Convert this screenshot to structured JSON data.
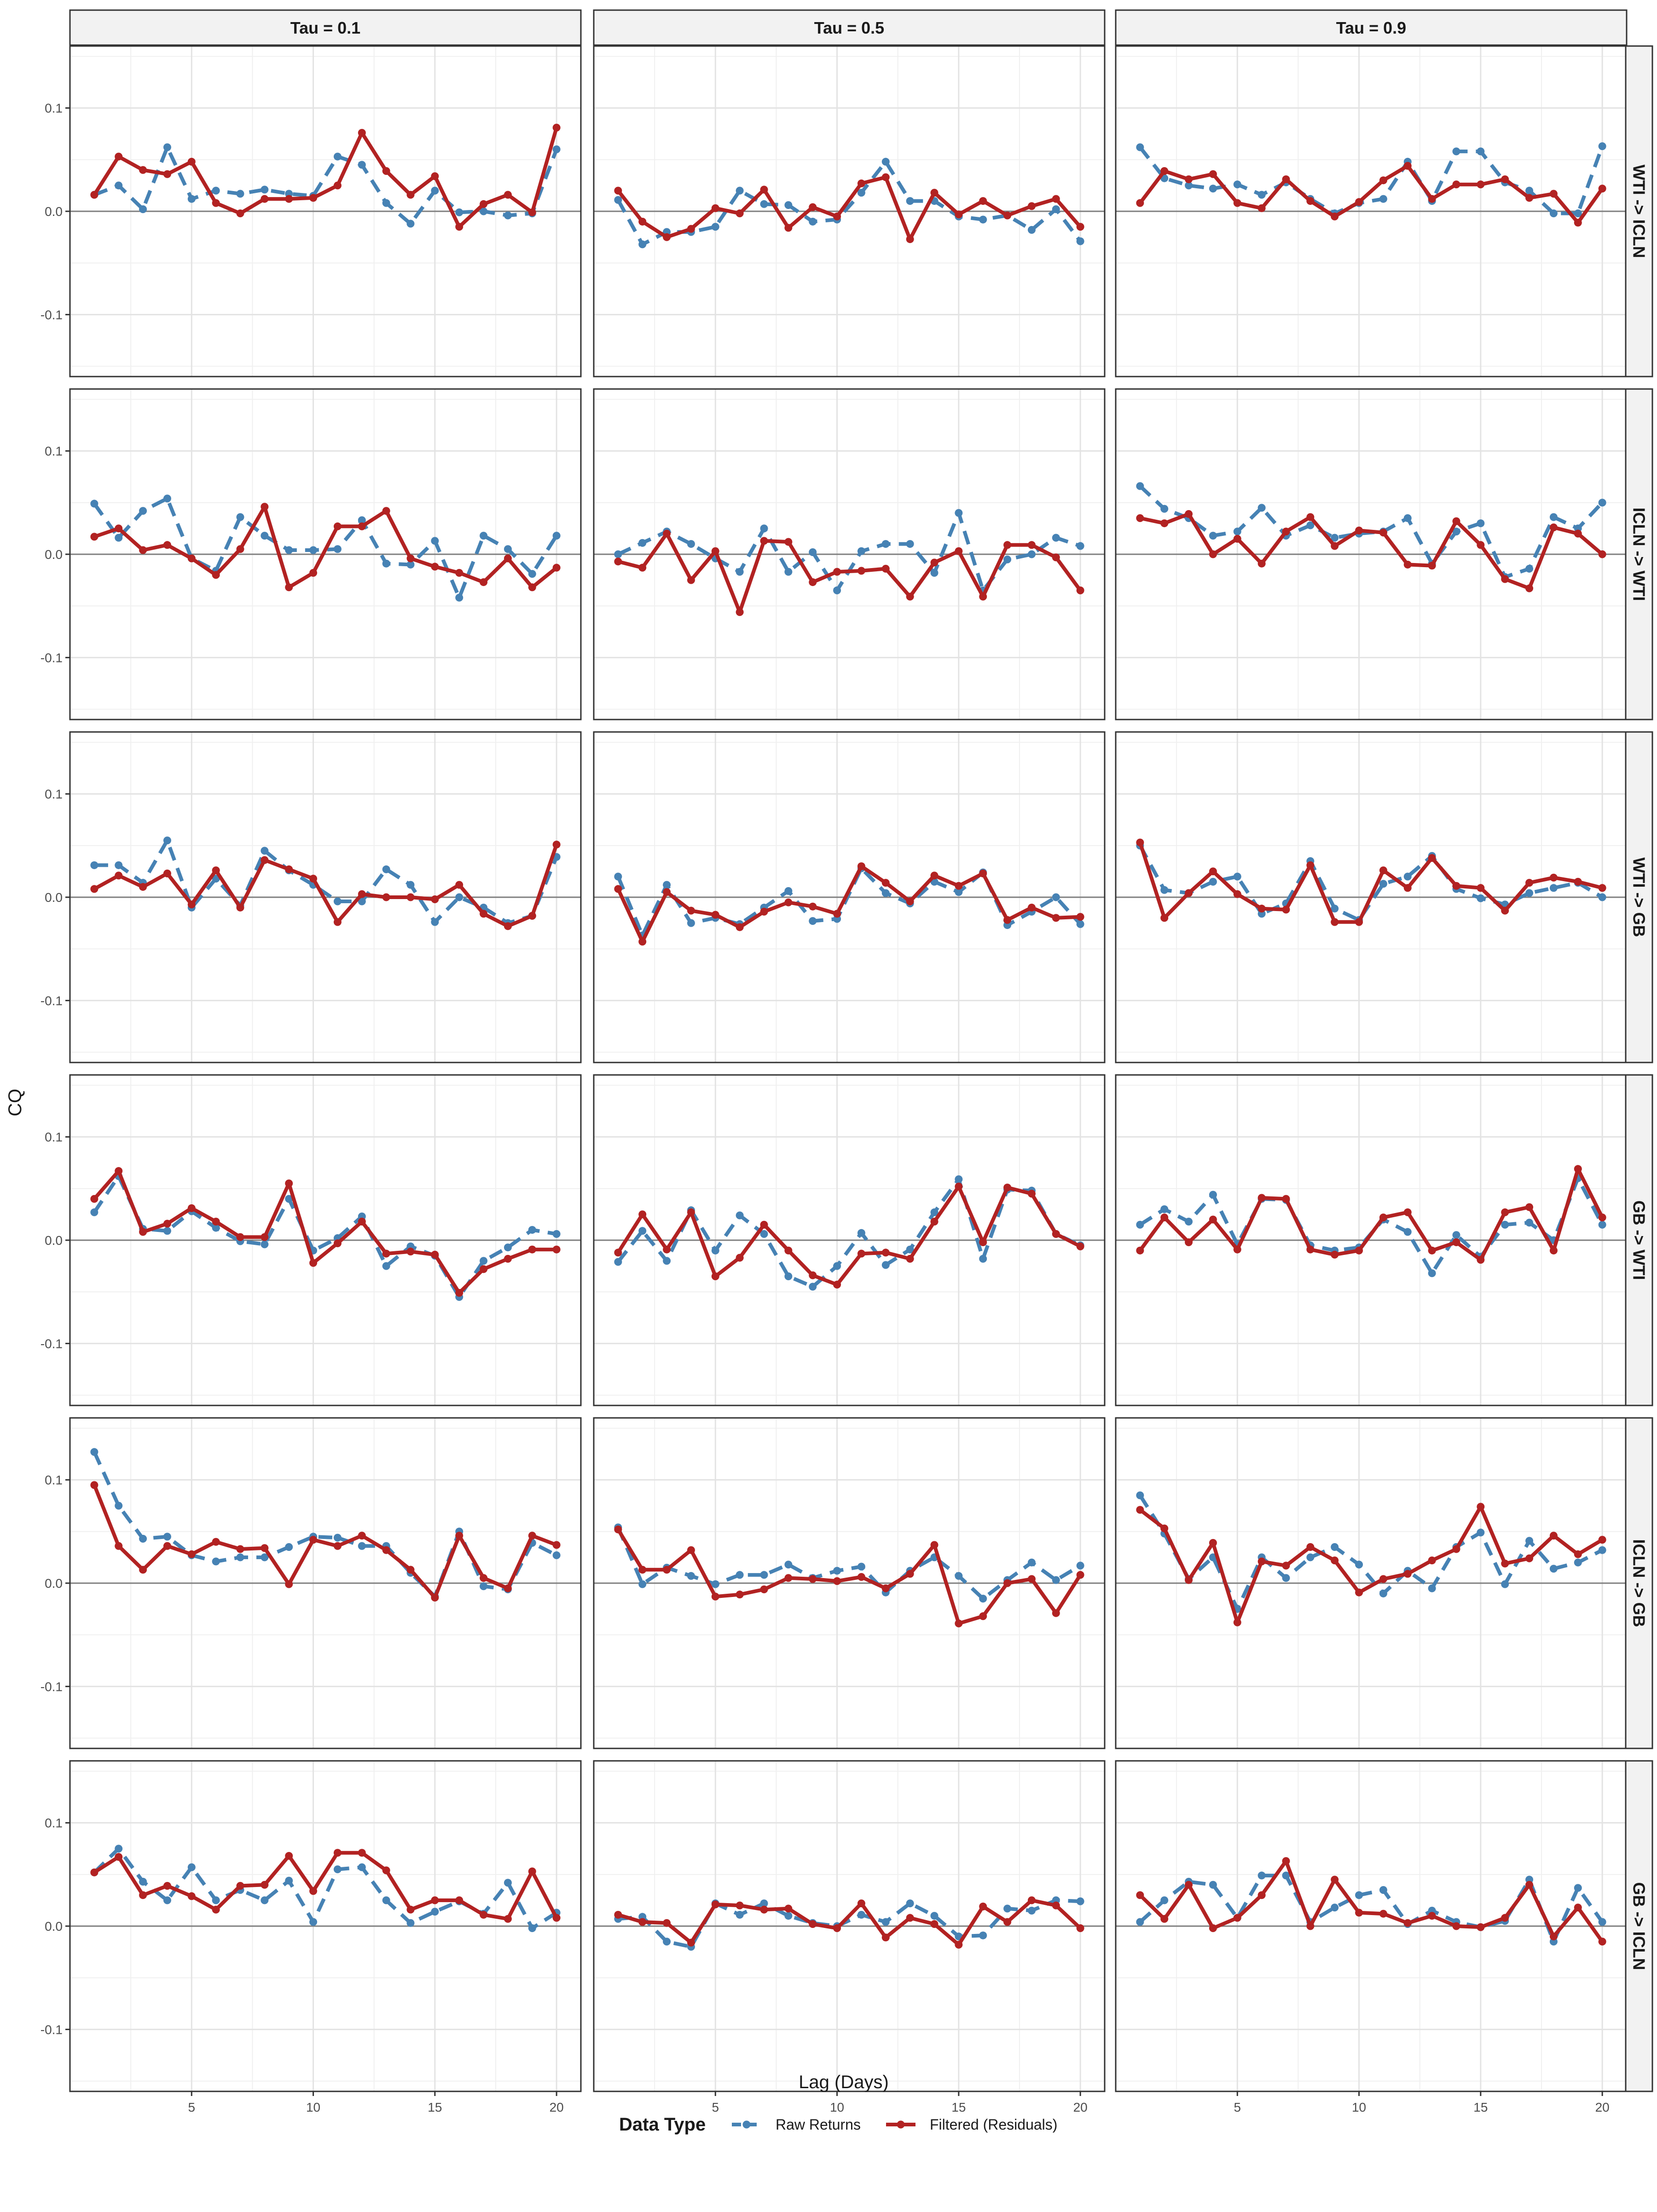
{
  "chart_data": {
    "type": "line",
    "xlabel": "Lag (Days)",
    "ylabel": "CQ",
    "xlim": [
      0,
      21
    ],
    "ylim": [
      -0.16,
      0.16
    ],
    "x_ticks": [
      5,
      10,
      15,
      20
    ],
    "x_tick_labels": [
      "5",
      "10",
      "15",
      "20"
    ],
    "y_ticks": [
      -0.1,
      0.0,
      0.1
    ],
    "y_tick_labels": [
      "-0.1",
      "0.0",
      "0.1"
    ],
    "grid": true,
    "reference_line_y": 0,
    "x": [
      1,
      2,
      3,
      4,
      5,
      6,
      7,
      8,
      9,
      10,
      11,
      12,
      13,
      14,
      15,
      16,
      17,
      18,
      19,
      20
    ],
    "columns": [
      "Tau = 0.1",
      "Tau = 0.5",
      "Tau = 0.9"
    ],
    "rows": [
      "WTI -> ICLN",
      "ICLN -> WTI",
      "WTI -> GB",
      "GB -> WTI",
      "ICLN -> GB",
      "GB -> ICLN"
    ],
    "legend": {
      "title": "Data Type",
      "position": "bottom",
      "entries": [
        {
          "label": "Raw Returns",
          "color": "#4682B4",
          "linestyle": "dashed"
        },
        {
          "label": "Filtered (Residuals)",
          "color": "#B22222",
          "linestyle": "solid"
        }
      ]
    },
    "panels": [
      [
        {
          "raw": [
            0.016,
            0.025,
            0.002,
            0.062,
            0.012,
            0.02,
            0.017,
            0.021,
            0.017,
            0.015,
            0.053,
            0.045,
            0.008,
            -0.012,
            0.02,
            -0.001,
            0.0,
            -0.004,
            -0.002,
            0.06
          ],
          "filtered": [
            0.016,
            0.053,
            0.04,
            0.036,
            0.048,
            0.008,
            -0.002,
            0.012,
            0.012,
            0.013,
            0.025,
            0.076,
            0.039,
            0.016,
            0.034,
            -0.015,
            0.007,
            0.016,
            -0.001,
            0.081
          ]
        },
        {
          "raw": [
            0.011,
            -0.032,
            -0.02,
            -0.02,
            -0.015,
            0.02,
            0.007,
            0.006,
            -0.01,
            -0.008,
            0.018,
            0.048,
            0.01,
            0.01,
            -0.005,
            -0.008,
            -0.004,
            -0.018,
            0.002,
            -0.029
          ],
          "filtered": [
            0.02,
            -0.01,
            -0.025,
            -0.017,
            0.003,
            -0.002,
            0.021,
            -0.016,
            0.004,
            -0.005,
            0.027,
            0.033,
            -0.027,
            0.018,
            -0.003,
            0.01,
            -0.004,
            0.005,
            0.012,
            -0.015
          ]
        },
        {
          "raw": [
            0.062,
            0.032,
            0.025,
            0.022,
            0.026,
            0.016,
            0.028,
            0.012,
            -0.002,
            0.008,
            0.012,
            0.048,
            0.01,
            0.058,
            0.058,
            0.028,
            0.02,
            -0.002,
            -0.002,
            0.063
          ],
          "filtered": [
            0.008,
            0.039,
            0.031,
            0.036,
            0.008,
            0.003,
            0.031,
            0.01,
            -0.005,
            0.009,
            0.03,
            0.044,
            0.012,
            0.026,
            0.026,
            0.031,
            0.013,
            0.017,
            -0.011,
            0.022
          ]
        }
      ],
      [
        {
          "raw": [
            0.049,
            0.016,
            0.042,
            0.054,
            -0.004,
            -0.016,
            0.036,
            0.018,
            0.004,
            0.004,
            0.005,
            0.033,
            -0.009,
            -0.01,
            0.013,
            -0.042,
            0.018,
            0.005,
            -0.019,
            0.018
          ],
          "filtered": [
            0.017,
            0.025,
            0.004,
            0.009,
            -0.004,
            -0.02,
            0.005,
            0.046,
            -0.032,
            -0.018,
            0.027,
            0.027,
            0.042,
            -0.004,
            -0.012,
            -0.018,
            -0.027,
            -0.004,
            -0.032,
            -0.013
          ]
        },
        {
          "raw": [
            0.0,
            0.011,
            0.022,
            0.01,
            -0.004,
            -0.017,
            0.025,
            -0.017,
            0.002,
            -0.035,
            0.003,
            0.01,
            0.01,
            -0.018,
            0.04,
            -0.035,
            -0.005,
            0.0,
            0.016,
            0.008
          ],
          "filtered": [
            -0.007,
            -0.013,
            0.02,
            -0.025,
            0.003,
            -0.056,
            0.013,
            0.012,
            -0.027,
            -0.017,
            -0.016,
            -0.014,
            -0.041,
            -0.008,
            0.003,
            -0.041,
            0.009,
            0.009,
            -0.003,
            -0.035
          ]
        },
        {
          "raw": [
            0.066,
            0.044,
            0.035,
            0.018,
            0.022,
            0.045,
            0.018,
            0.028,
            0.016,
            0.02,
            0.022,
            0.035,
            -0.009,
            0.022,
            0.03,
            -0.022,
            -0.014,
            0.036,
            0.025,
            0.05
          ],
          "filtered": [
            0.035,
            0.03,
            0.039,
            0.0,
            0.015,
            -0.009,
            0.022,
            0.036,
            0.008,
            0.023,
            0.021,
            -0.01,
            -0.011,
            0.032,
            0.009,
            -0.024,
            -0.033,
            0.026,
            0.02,
            0.0
          ]
        }
      ],
      [
        {
          "raw": [
            0.031,
            0.031,
            0.014,
            0.055,
            -0.01,
            0.018,
            -0.008,
            0.045,
            0.026,
            0.012,
            -0.004,
            -0.004,
            0.027,
            0.012,
            -0.024,
            0.0,
            -0.01,
            -0.025,
            -0.018,
            0.039
          ],
          "filtered": [
            0.008,
            0.021,
            0.01,
            0.023,
            -0.007,
            0.026,
            -0.01,
            0.036,
            0.027,
            0.018,
            -0.024,
            0.003,
            0.0,
            0.0,
            -0.002,
            0.012,
            -0.016,
            -0.028,
            -0.018,
            0.051
          ]
        },
        {
          "raw": [
            0.02,
            -0.037,
            0.012,
            -0.025,
            -0.02,
            -0.026,
            -0.01,
            0.006,
            -0.023,
            -0.021,
            0.028,
            0.004,
            -0.006,
            0.015,
            0.005,
            0.024,
            -0.027,
            -0.014,
            0.0,
            -0.026
          ],
          "filtered": [
            0.008,
            -0.043,
            0.005,
            -0.013,
            -0.017,
            -0.029,
            -0.014,
            -0.005,
            -0.009,
            -0.016,
            0.03,
            0.014,
            -0.004,
            0.021,
            0.011,
            0.023,
            -0.022,
            -0.01,
            -0.02,
            -0.019
          ]
        },
        {
          "raw": [
            0.05,
            0.007,
            0.004,
            0.015,
            0.02,
            -0.016,
            -0.006,
            0.035,
            -0.011,
            -0.022,
            0.013,
            0.02,
            0.04,
            0.008,
            -0.001,
            -0.007,
            0.004,
            0.009,
            0.014,
            0.0
          ],
          "filtered": [
            0.053,
            -0.02,
            0.004,
            0.025,
            0.003,
            -0.011,
            -0.012,
            0.031,
            -0.024,
            -0.024,
            0.026,
            0.009,
            0.038,
            0.011,
            0.009,
            -0.013,
            0.014,
            0.019,
            0.015,
            0.009
          ]
        }
      ],
      [
        {
          "raw": [
            0.027,
            0.062,
            0.011,
            0.009,
            0.028,
            0.012,
            -0.001,
            -0.004,
            0.04,
            -0.01,
            0.002,
            0.023,
            -0.025,
            -0.006,
            -0.015,
            -0.055,
            -0.02,
            -0.007,
            0.01,
            0.006
          ],
          "filtered": [
            0.04,
            0.067,
            0.008,
            0.016,
            0.031,
            0.018,
            0.003,
            0.003,
            0.055,
            -0.022,
            -0.003,
            0.018,
            -0.013,
            -0.011,
            -0.014,
            -0.051,
            -0.028,
            -0.018,
            -0.009,
            -0.009
          ]
        },
        {
          "raw": [
            -0.021,
            0.009,
            -0.02,
            0.029,
            -0.01,
            0.024,
            0.006,
            -0.035,
            -0.045,
            -0.025,
            0.007,
            -0.024,
            -0.009,
            0.027,
            0.059,
            -0.018,
            0.049,
            0.048,
            0.006,
            -0.005
          ],
          "filtered": [
            -0.012,
            0.025,
            -0.009,
            0.027,
            -0.035,
            -0.017,
            0.015,
            -0.01,
            -0.034,
            -0.043,
            -0.013,
            -0.012,
            -0.018,
            0.018,
            0.052,
            -0.002,
            0.051,
            0.045,
            0.006,
            -0.006
          ]
        },
        {
          "raw": [
            0.015,
            0.03,
            0.018,
            0.044,
            -0.004,
            0.04,
            0.039,
            -0.005,
            -0.01,
            -0.007,
            0.02,
            0.008,
            -0.032,
            0.005,
            -0.016,
            0.015,
            0.017,
            0.0,
            0.06,
            0.015
          ],
          "filtered": [
            -0.01,
            0.022,
            -0.002,
            0.02,
            -0.009,
            0.041,
            0.04,
            -0.009,
            -0.014,
            -0.01,
            0.022,
            0.027,
            -0.01,
            -0.002,
            -0.019,
            0.027,
            0.032,
            -0.01,
            0.069,
            0.022
          ]
        }
      ],
      [
        {
          "raw": [
            0.127,
            0.075,
            0.043,
            0.045,
            0.027,
            0.021,
            0.025,
            0.025,
            0.035,
            0.045,
            0.044,
            0.036,
            0.036,
            0.01,
            -0.013,
            0.05,
            -0.003,
            -0.006,
            0.039,
            0.027
          ],
          "filtered": [
            0.095,
            0.036,
            0.013,
            0.036,
            0.028,
            0.04,
            0.033,
            0.034,
            -0.001,
            0.042,
            0.036,
            0.046,
            0.032,
            0.013,
            -0.014,
            0.046,
            0.005,
            -0.005,
            0.046,
            0.037
          ]
        },
        {
          "raw": [
            0.054,
            -0.001,
            0.015,
            0.007,
            -0.001,
            0.008,
            0.008,
            0.018,
            0.005,
            0.012,
            0.016,
            -0.009,
            0.012,
            0.025,
            0.007,
            -0.015,
            0.003,
            0.02,
            0.003,
            0.017
          ],
          "filtered": [
            0.052,
            0.013,
            0.013,
            0.032,
            -0.013,
            -0.011,
            -0.006,
            0.005,
            0.004,
            0.002,
            0.006,
            -0.005,
            0.009,
            0.037,
            -0.039,
            -0.032,
            0.0,
            0.004,
            -0.029,
            0.008
          ]
        },
        {
          "raw": [
            0.085,
            0.048,
            0.004,
            0.025,
            -0.025,
            0.025,
            0.005,
            0.025,
            0.035,
            0.018,
            -0.01,
            0.012,
            -0.005,
            0.035,
            0.049,
            -0.001,
            0.041,
            0.014,
            0.02,
            0.032
          ],
          "filtered": [
            0.071,
            0.053,
            0.003,
            0.039,
            -0.038,
            0.021,
            0.017,
            0.035,
            0.022,
            -0.009,
            0.004,
            0.009,
            0.022,
            0.033,
            0.074,
            0.019,
            0.024,
            0.046,
            0.028,
            0.042
          ]
        }
      ],
      [
        {
          "raw": [
            0.052,
            0.075,
            0.043,
            0.025,
            0.057,
            0.025,
            0.035,
            0.025,
            0.044,
            0.004,
            0.055,
            0.057,
            0.025,
            0.003,
            0.014,
            0.024,
            0.012,
            0.042,
            -0.002,
            0.013
          ],
          "filtered": [
            0.052,
            0.067,
            0.03,
            0.039,
            0.029,
            0.016,
            0.039,
            0.04,
            0.068,
            0.034,
            0.071,
            0.071,
            0.054,
            0.016,
            0.025,
            0.025,
            0.011,
            0.007,
            0.053,
            0.008
          ]
        },
        {
          "raw": [
            0.007,
            0.009,
            -0.015,
            -0.02,
            0.022,
            0.011,
            0.022,
            0.01,
            0.003,
            0.0,
            0.011,
            0.004,
            0.022,
            0.01,
            -0.01,
            -0.009,
            0.017,
            0.015,
            0.025,
            0.024
          ],
          "filtered": [
            0.011,
            0.004,
            0.003,
            -0.016,
            0.021,
            0.02,
            0.016,
            0.017,
            0.002,
            -0.002,
            0.022,
            -0.011,
            0.008,
            0.002,
            -0.018,
            0.019,
            0.004,
            0.025,
            0.02,
            -0.002
          ]
        },
        {
          "raw": [
            0.004,
            0.025,
            0.043,
            0.04,
            0.008,
            0.049,
            0.049,
            0.004,
            0.018,
            0.03,
            0.035,
            0.002,
            0.015,
            0.004,
            -0.001,
            0.005,
            0.045,
            -0.015,
            0.037,
            0.004
          ],
          "filtered": [
            0.03,
            0.007,
            0.04,
            -0.002,
            0.008,
            0.03,
            0.063,
            0.0,
            0.045,
            0.013,
            0.012,
            0.003,
            0.01,
            0.0,
            -0.001,
            0.008,
            0.04,
            -0.01,
            0.018,
            -0.015
          ]
        }
      ]
    ]
  }
}
